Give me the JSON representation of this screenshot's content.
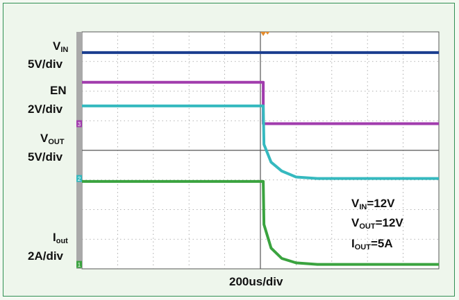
{
  "chart_data": {
    "type": "line",
    "title": "",
    "xlabel": "200us/div",
    "time_per_div_us": 200,
    "divisions": {
      "x": 10,
      "y": 8
    },
    "grid": true,
    "channel_labels": [
      {
        "name": "V",
        "sub": "IN",
        "scale": "5V/div"
      },
      {
        "name": "EN",
        "sub": "",
        "scale": "2V/div"
      },
      {
        "name": "V",
        "sub": "OUT",
        "scale": "5V/div"
      },
      {
        "name": "I",
        "sub": "out",
        "scale": "2A/div"
      }
    ],
    "annotations": [
      {
        "name": "V",
        "sub": "IN",
        "value": "=12V"
      },
      {
        "name": "V",
        "sub": "OUT",
        "value": "=12V"
      },
      {
        "name": "I",
        "sub": "OUT",
        "value": "=5A"
      }
    ],
    "marker_labels": [
      "3",
      "2",
      "1"
    ],
    "series": [
      {
        "name": "VIN",
        "color": "#1a3d8f",
        "x_div": [
          0,
          10
        ],
        "y_div": [
          7.3,
          7.3
        ]
      },
      {
        "name": "EN",
        "color": "#a13cad",
        "x_div": [
          0,
          5.08,
          5.08,
          10
        ],
        "y_div": [
          6.3,
          6.3,
          4.9,
          4.9
        ]
      },
      {
        "name": "VOUT",
        "color": "#35b9bf",
        "x_div": [
          0,
          5.08,
          5.1,
          5.3,
          5.6,
          6.0,
          6.6,
          10
        ],
        "y_div": [
          5.5,
          5.5,
          4.2,
          3.6,
          3.3,
          3.1,
          3.05,
          3.05
        ]
      },
      {
        "name": "Iout",
        "color": "#3aa33f",
        "x_div": [
          0,
          5.08,
          5.1,
          5.3,
          5.6,
          6.0,
          6.6,
          10
        ],
        "y_div": [
          2.95,
          2.95,
          1.5,
          0.7,
          0.35,
          0.2,
          0.15,
          0.15
        ]
      }
    ]
  }
}
